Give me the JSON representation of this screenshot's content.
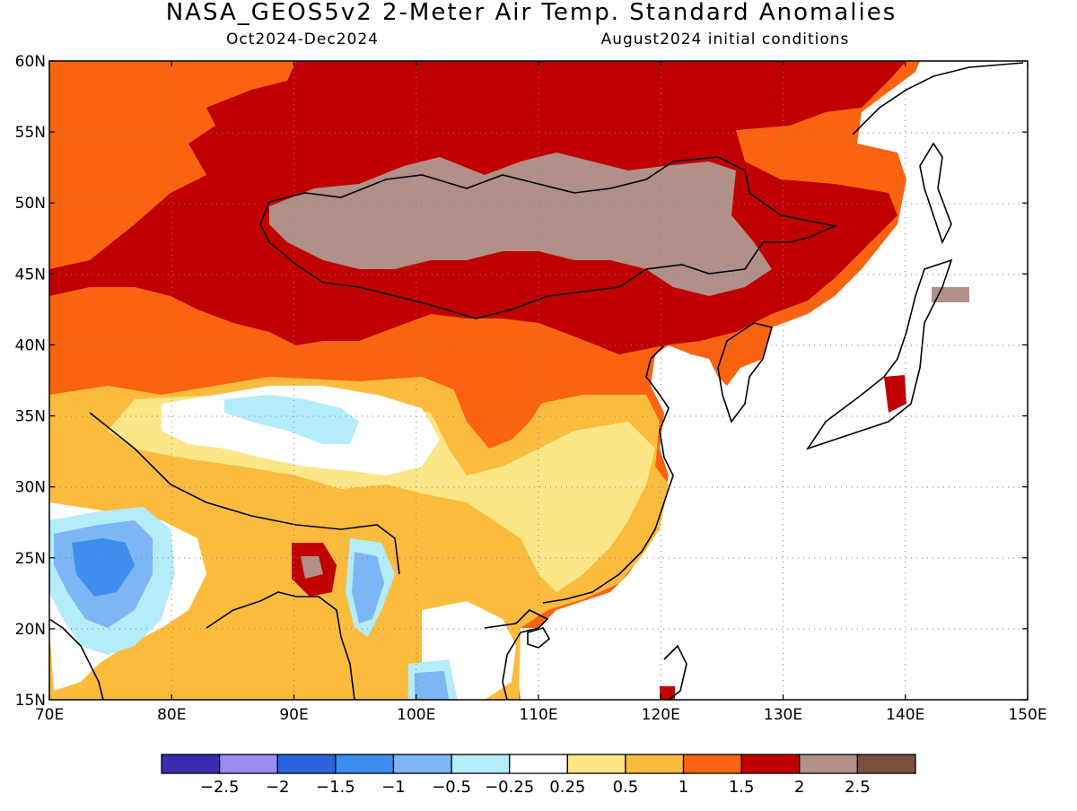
{
  "title": "NASA_GEOS5v2 2-Meter Air Temp. Standard Anomalies",
  "subtitle_left": "Oct2024-Dec2024",
  "subtitle_right": "August2024 initial conditions",
  "map": {
    "lon_range": [
      70,
      150
    ],
    "lat_range": [
      15,
      60
    ],
    "lon_ticks": [
      "70E",
      "80E",
      "90E",
      "100E",
      "110E",
      "120E",
      "130E",
      "140E",
      "150E"
    ],
    "lat_ticks": [
      "15N",
      "20N",
      "25N",
      "30N",
      "35N",
      "40N",
      "45N",
      "50N",
      "55N",
      "60N"
    ],
    "grid": "dotted",
    "ocean_color": "#ffffff"
  },
  "colorbar": {
    "colors": [
      "#3a2bb0",
      "#9a8cf0",
      "#2a63e0",
      "#3e8ef0",
      "#7cb6f4",
      "#b4ecfa",
      "#ffffff",
      "#fde687",
      "#fbbc3d",
      "#fa6410",
      "#c00000",
      "#b09088",
      "#7a5040"
    ],
    "labels": [
      "-2.5",
      "-2",
      "-1.5",
      "-1",
      "-0.5",
      "-0.25",
      "0.25",
      "0.5",
      "1",
      "1.5",
      "2",
      "2.5"
    ]
  }
}
